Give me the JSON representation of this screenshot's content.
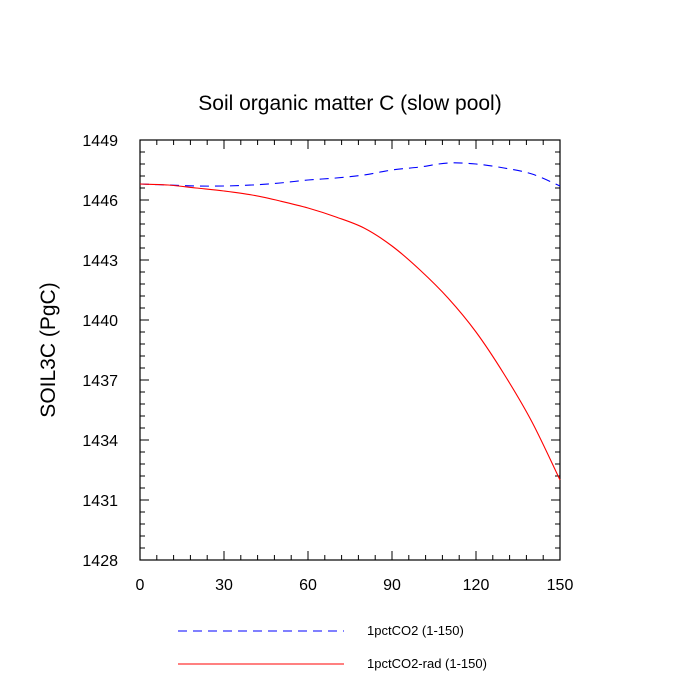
{
  "chart_data": {
    "type": "line",
    "title": "Soil organic matter C (slow pool)",
    "xlabel": "",
    "ylabel": "SOIL3C  (PgC)",
    "xlim": [
      0,
      150
    ],
    "ylim": [
      1428,
      1449
    ],
    "x_ticks": [
      0,
      30,
      60,
      90,
      120,
      150
    ],
    "y_ticks": [
      1428,
      1431,
      1434,
      1437,
      1440,
      1443,
      1446,
      1449
    ],
    "grid": false,
    "legend_position": "bottom",
    "series": [
      {
        "name": "1pctCO2 (1-150)",
        "color": "#0000ff",
        "dash": "dashed",
        "x": [
          0,
          10,
          20,
          30,
          40,
          50,
          60,
          70,
          80,
          90,
          100,
          110,
          120,
          130,
          140,
          150
        ],
        "y": [
          1446.8,
          1446.75,
          1446.7,
          1446.7,
          1446.75,
          1446.85,
          1447.0,
          1447.1,
          1447.25,
          1447.5,
          1447.65,
          1447.85,
          1447.8,
          1447.6,
          1447.3,
          1446.7
        ]
      },
      {
        "name": "1pctCO2-rad (1-150)",
        "color": "#ff0000",
        "dash": "solid",
        "x": [
          0,
          10,
          20,
          30,
          40,
          50,
          60,
          70,
          80,
          90,
          100,
          110,
          120,
          130,
          140,
          150
        ],
        "y": [
          1446.8,
          1446.75,
          1446.6,
          1446.45,
          1446.25,
          1445.95,
          1445.6,
          1445.15,
          1444.6,
          1443.7,
          1442.5,
          1441.1,
          1439.4,
          1437.3,
          1434.9,
          1432.0
        ]
      }
    ]
  }
}
